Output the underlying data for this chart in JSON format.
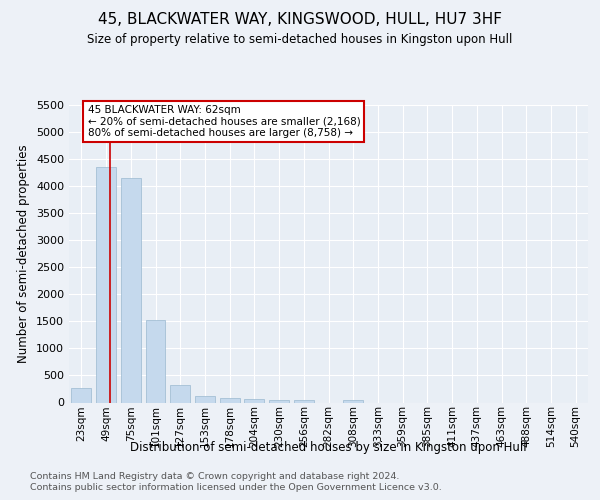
{
  "title": "45, BLACKWATER WAY, KINGSWOOD, HULL, HU7 3HF",
  "subtitle": "Size of property relative to semi-detached houses in Kingston upon Hull",
  "xlabel": "Distribution of semi-detached houses by size in Kingston upon Hull",
  "ylabel": "Number of semi-detached properties",
  "categories": [
    "23sqm",
    "49sqm",
    "75sqm",
    "101sqm",
    "127sqm",
    "153sqm",
    "178sqm",
    "204sqm",
    "230sqm",
    "256sqm",
    "282sqm",
    "308sqm",
    "333sqm",
    "359sqm",
    "385sqm",
    "411sqm",
    "437sqm",
    "463sqm",
    "488sqm",
    "514sqm",
    "540sqm"
  ],
  "values": [
    270,
    4350,
    4150,
    1520,
    320,
    120,
    75,
    60,
    55,
    40,
    0,
    55,
    0,
    0,
    0,
    0,
    0,
    0,
    0,
    0,
    0
  ],
  "bar_color": "#c5d9ed",
  "bar_edge_color": "#9ab8d0",
  "vline_color": "#cc0000",
  "vline_x": 1.15,
  "annotation_text": "45 BLACKWATER WAY: 62sqm\n← 20% of semi-detached houses are smaller (2,168)\n80% of semi-detached houses are larger (8,758) →",
  "annotation_box_color": "white",
  "annotation_box_edge": "#cc0000",
  "ylim_max": 5500,
  "yticks": [
    0,
    500,
    1000,
    1500,
    2000,
    2500,
    3000,
    3500,
    4000,
    4500,
    5000,
    5500
  ],
  "fig_bg_color": "#edf1f7",
  "plot_bg_color": "#e8eef5",
  "grid_color": "#ffffff",
  "footer1": "Contains HM Land Registry data © Crown copyright and database right 2024.",
  "footer2": "Contains public sector information licensed under the Open Government Licence v3.0."
}
